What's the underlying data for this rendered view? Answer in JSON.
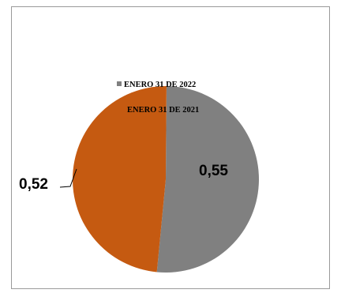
{
  "chart_data": {
    "type": "pie",
    "categories": [
      "ENERO  31 DE 2022",
      "ENERO 31 DE 2021"
    ],
    "values": [
      0.55,
      0.52
    ],
    "data_labels": [
      "0,55",
      "0,52"
    ],
    "colors": [
      "#808080",
      "#c55a11"
    ],
    "legend": [
      "ENERO  31 DE 2022",
      "ENERO 31 DE 2021"
    ],
    "legend_position": "top"
  }
}
